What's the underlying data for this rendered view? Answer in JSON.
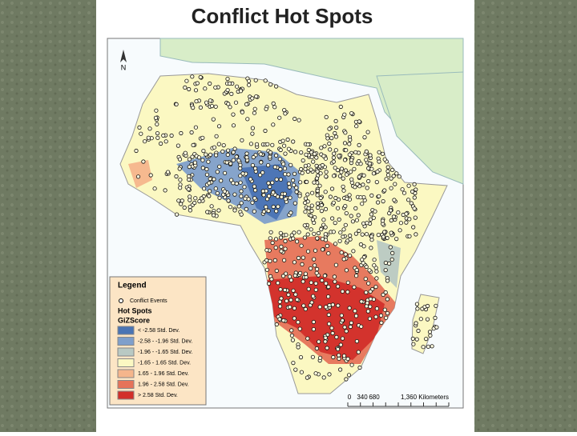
{
  "header": {
    "title": "Conflict Hot Spots"
  },
  "map": {
    "north_label": "N",
    "legend": {
      "title": "Legend",
      "points_label": "Conflict Events",
      "layer_title": "Hot Spots",
      "field": "GiZScore",
      "classes": [
        {
          "label": "< -2.58 Std. Dev.",
          "color": "#4a74b4"
        },
        {
          "label": "-2.58 - -1.96 Std. Dev.",
          "color": "#7f9fcb"
        },
        {
          "label": "-1.96 - -1.65 Std. Dev.",
          "color": "#b9c9c3"
        },
        {
          "label": "-1.65 - 1.65 Std. Dev.",
          "color": "#fbf8c2"
        },
        {
          "label": "1.65 - 1.96 Std. Dev.",
          "color": "#f5b58c"
        },
        {
          "label": "1.96 - 2.58 Std. Dev.",
          "color": "#e6735a"
        },
        {
          "label": "> 2.58 Std. Dev.",
          "color": "#d22f2a"
        }
      ]
    },
    "scale_bar": {
      "labels": [
        "0",
        "340",
        "680",
        "1,360 Kilometers"
      ]
    }
  }
}
